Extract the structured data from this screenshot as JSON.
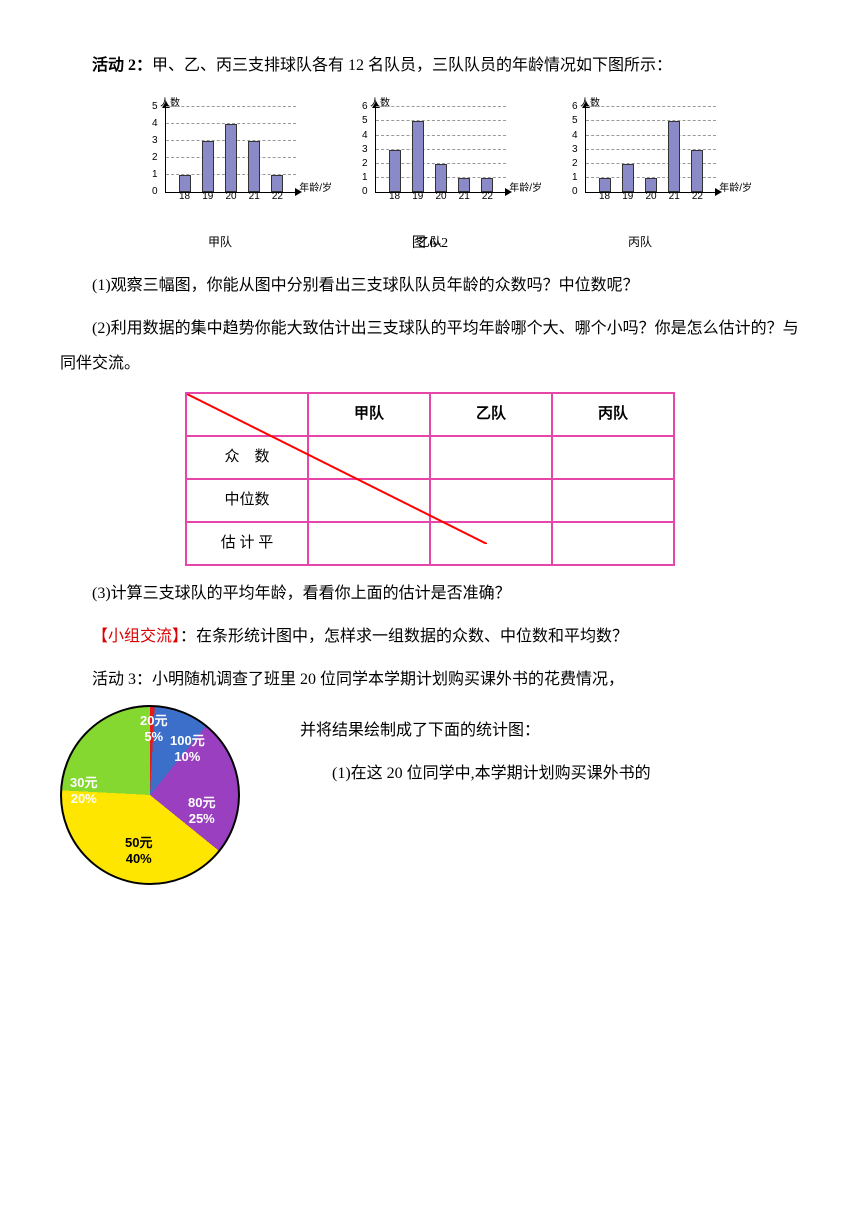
{
  "activity2": {
    "title_prefix": "活动 2：",
    "intro": "甲、乙、丙三支排球队各有 12 名队员，三队队员的年龄情况如下图所示：",
    "ylabel": "人数",
    "xlabel": "年龄/岁",
    "xticks": [
      18,
      19,
      20,
      21,
      22
    ],
    "charts": [
      {
        "name": "甲队",
        "ymax": 5,
        "values": [
          1,
          3,
          4,
          3,
          1
        ],
        "bar_color": "#8a8ac8"
      },
      {
        "name": "乙队",
        "ymax": 6,
        "values": [
          3,
          5,
          2,
          1,
          1
        ],
        "bar_color": "#8a8ac8"
      },
      {
        "name": "丙队",
        "ymax": 6,
        "values": [
          1,
          2,
          1,
          5,
          3
        ],
        "bar_color": "#8a8ac8"
      }
    ],
    "caption": "图 6-2",
    "q1": "(1)观察三幅图，你能从图中分别看出三支球队队员年龄的众数吗？中位数呢？",
    "q2": "(2)利用数据的集中趋势你能大致估计出三支球队的平均年龄哪个大、哪个小吗？你是怎么估计的？与同伴交流。",
    "q3": "(3)计算三支球队的平均年龄，看看你上面的估计是否准确？"
  },
  "table": {
    "cols": [
      "甲队",
      "乙队",
      "丙队"
    ],
    "rows": [
      "众　数",
      "中位数",
      "估 计 平"
    ],
    "border_color": "#e646a9",
    "diag_color": "#ff0000"
  },
  "group": {
    "label": "【小组交流】",
    "text": "：在条形统计图中，怎样求一组数据的众数、中位数和平均数？"
  },
  "activity3": {
    "title_prefix": "活动 3：",
    "intro": "小明随机调查了班里 20 位同学本学期计划购买课外书的花费情况，并将结果绘制成了下面的统计图：",
    "intro_cont": "并将结果绘制成了下面的统计图：",
    "q1": "(1)在这 20 位同学中,本学期计划购买课外书的",
    "pie": {
      "slices": [
        {
          "label": "20元",
          "pct_label": "5%",
          "pct": 5,
          "color": "#e41a1c"
        },
        {
          "label": "100元",
          "pct_label": "10%",
          "pct": 10,
          "color": "#3b6fc9"
        },
        {
          "label": "80元",
          "pct_label": "25%",
          "pct": 25,
          "color": "#9a3fbf"
        },
        {
          "label": "50元",
          "pct_label": "40%",
          "pct": 40,
          "color": "#ffe600"
        },
        {
          "label": "30元",
          "pct_label": "20%",
          "pct": 20,
          "color": "#84d82f"
        }
      ],
      "pie_border": "#000"
    }
  }
}
